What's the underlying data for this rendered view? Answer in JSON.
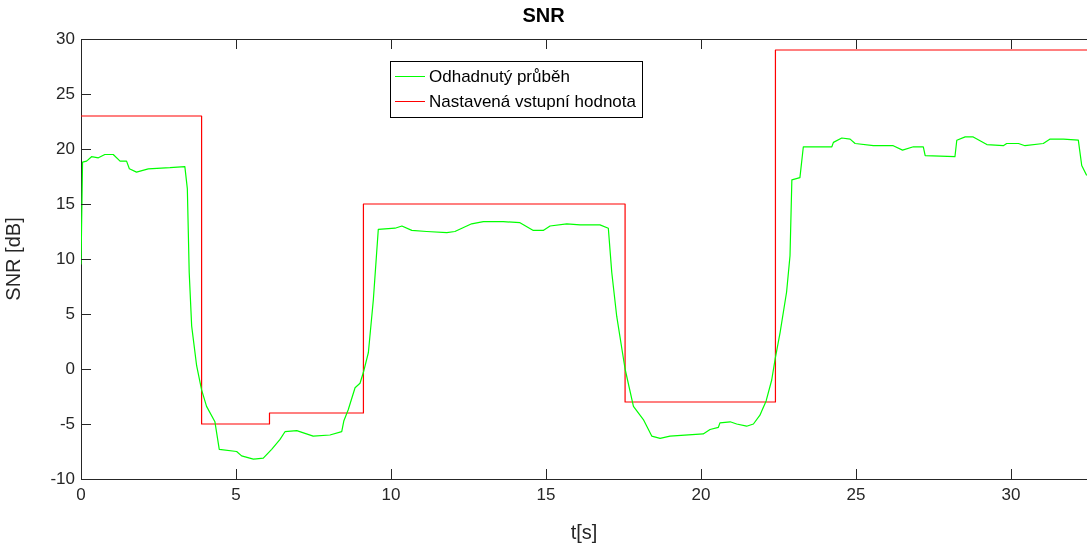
{
  "chart_data": {
    "type": "line",
    "title": "SNR",
    "xlabel": "t[s]",
    "ylabel": "SNR [dB]",
    "xlim": [
      0,
      32.45
    ],
    "xticks": [
      0,
      5,
      10,
      15,
      20,
      25,
      30
    ],
    "ylim": [
      -10,
      30
    ],
    "yticks": [
      -10,
      -5,
      0,
      5,
      10,
      15,
      20,
      25,
      30
    ],
    "grid": false,
    "legend": "top",
    "marker": "none",
    "line_style": "solid",
    "series": [
      {
        "name": "Odhadnutý průběh",
        "color": "#00ff00",
        "x": [
          0,
          0.05,
          0.18,
          0.34,
          0.56,
          0.77,
          1.04,
          1.26,
          1.47,
          1.56,
          1.79,
          2.17,
          2.87,
          3.35,
          3.43,
          3.49,
          3.57,
          3.73,
          3.89,
          4.05,
          4.32,
          4.46,
          5.02,
          5.18,
          5.56,
          5.88,
          6.15,
          6.42,
          6.58,
          6.96,
          7.49,
          8.03,
          8.41,
          8.48,
          8.62,
          8.84,
          9.0,
          9.11,
          9.27,
          9.43,
          9.59,
          10.13,
          10.35,
          10.67,
          11.15,
          11.8,
          12.06,
          12.6,
          12.98,
          13.62,
          14.16,
          14.59,
          14.91,
          15.13,
          15.67,
          16.1,
          16.74,
          17.01,
          17.12,
          17.28,
          17.55,
          17.82,
          18.14,
          18.41,
          18.68,
          19.0,
          20.07,
          20.29,
          20.56,
          20.61,
          20.94,
          21.15,
          21.47,
          21.69,
          21.9,
          22.1,
          22.28,
          22.39,
          22.55,
          22.76,
          22.87,
          22.93,
          23.19,
          23.3,
          24.22,
          24.27,
          24.54,
          24.81,
          24.97,
          25.56,
          26.2,
          26.5,
          26.85,
          27.17,
          27.23,
          28.19,
          28.25,
          28.52,
          28.78,
          29.22,
          29.75,
          29.86,
          30.24,
          30.45,
          31.04,
          31.26,
          31.69,
          32.17,
          32.28,
          32.44
        ],
        "values": [
          9.5,
          18.8,
          18.9,
          19.3,
          19.2,
          19.5,
          19.5,
          18.9,
          18.9,
          18.2,
          17.9,
          18.2,
          18.3,
          18.4,
          16.4,
          8.8,
          3.9,
          0.3,
          -1.9,
          -3.4,
          -4.8,
          -7.3,
          -7.5,
          -7.9,
          -8.2,
          -8.1,
          -7.3,
          -6.4,
          -5.7,
          -5.6,
          -6.1,
          -6.0,
          -5.7,
          -4.7,
          -3.7,
          -1.7,
          -1.3,
          -0.3,
          1.5,
          6.3,
          12.7,
          12.8,
          13.0,
          12.6,
          12.5,
          12.4,
          12.5,
          13.2,
          13.4,
          13.4,
          13.3,
          12.6,
          12.6,
          13.0,
          13.2,
          13.1,
          13.1,
          12.8,
          8.8,
          4.8,
          0,
          -3.4,
          -4.6,
          -6.1,
          -6.3,
          -6.1,
          -5.9,
          -5.5,
          -5.3,
          -4.9,
          -4.8,
          -5.0,
          -5.2,
          -5.0,
          -4.2,
          -2.9,
          -1.0,
          0.9,
          3.3,
          7.0,
          10.3,
          17.2,
          17.4,
          20.2,
          20.2,
          20.6,
          21.0,
          20.9,
          20.5,
          20.3,
          20.3,
          19.9,
          20.2,
          20.2,
          19.4,
          19.3,
          20.8,
          21.1,
          21.1,
          20.4,
          20.3,
          20.5,
          20.5,
          20.3,
          20.5,
          20.9,
          20.9,
          20.8,
          18.5,
          17.6
        ]
      },
      {
        "name": "Nastavená vstupní hodnota",
        "type": "step",
        "color": "#ff0000",
        "x": [
          0,
          3.89,
          6.08,
          9.11,
          17.55,
          22.4,
          32.45
        ],
        "values": [
          23,
          -5,
          -4,
          15,
          -3,
          29,
          29
        ]
      }
    ]
  }
}
